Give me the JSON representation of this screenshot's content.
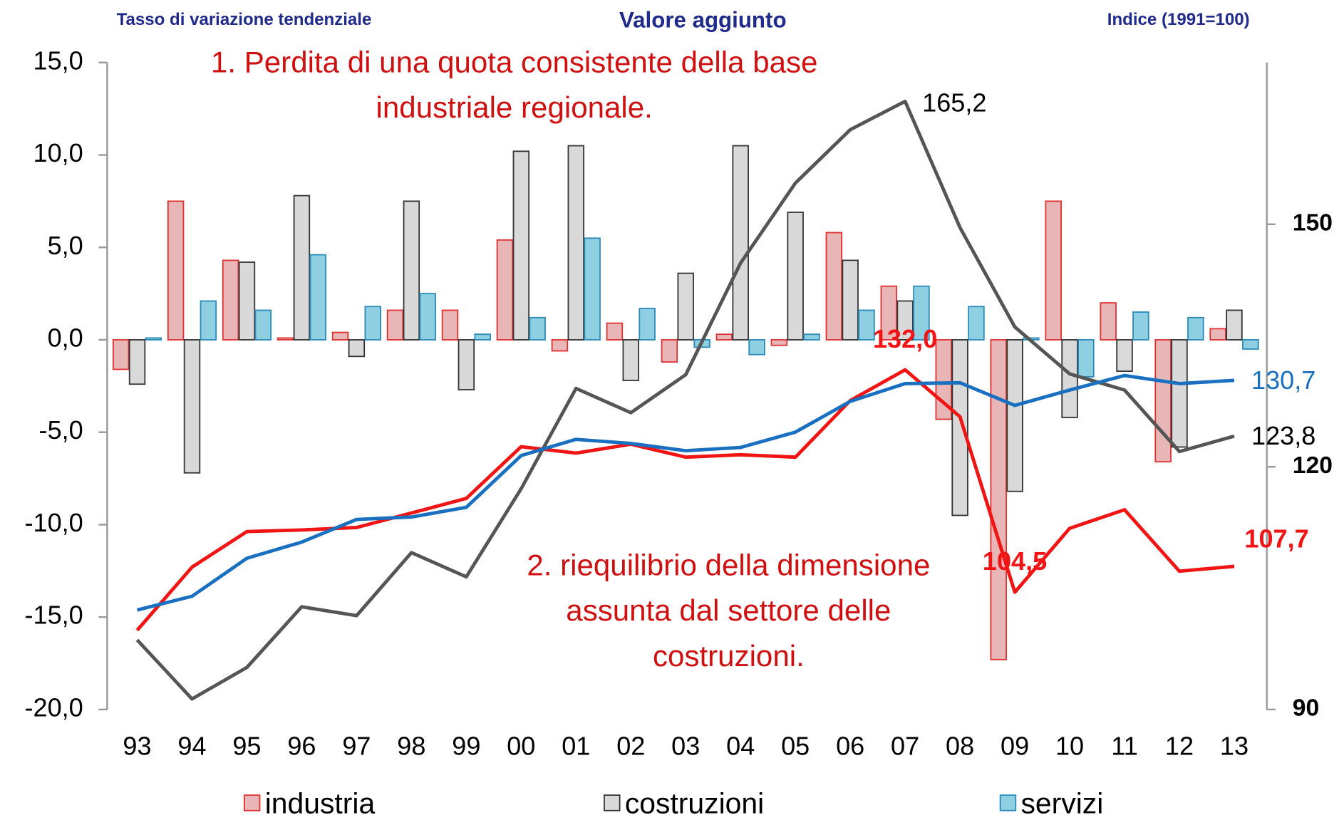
{
  "chart_data": {
    "type": "bar",
    "title": "Valore aggiunto",
    "y_axis_label": "Tasso di variazione tendenziale",
    "y2_axis_label": "Indice (1991=100)",
    "annotations": [
      {
        "lines": [
          "1. Perdita di una quota consistente della base",
          "industriale regionale."
        ]
      },
      {
        "lines": [
          "2. riequilibrio della dimensione",
          "assunta dal settore delle",
          "costruzioni."
        ]
      }
    ],
    "categories": [
      "93",
      "94",
      "95",
      "96",
      "97",
      "98",
      "99",
      "00",
      "01",
      "02",
      "03",
      "04",
      "05",
      "06",
      "07",
      "08",
      "09",
      "10",
      "11",
      "12",
      "13"
    ],
    "series": [
      {
        "name": "industria",
        "color": "#e8b6b6",
        "stroke": "#e03030",
        "values": [
          -1.6,
          7.5,
          4.3,
          0.1,
          0.4,
          1.6,
          1.6,
          5.4,
          -0.6,
          0.9,
          -1.2,
          0.3,
          -0.3,
          5.8,
          2.9,
          -4.3,
          -17.3,
          7.5,
          2.0,
          -6.6,
          0.6
        ]
      },
      {
        "name": "costruzioni",
        "color": "#d9d9d9",
        "stroke": "#333333",
        "values": [
          -2.4,
          -7.2,
          4.2,
          7.8,
          -0.9,
          7.5,
          -2.7,
          10.2,
          10.5,
          -2.2,
          3.6,
          10.5,
          6.9,
          4.3,
          2.1,
          -9.5,
          -8.2,
          -4.2,
          -1.7,
          -5.8,
          1.6
        ]
      },
      {
        "name": "servizi",
        "color": "#8fcfe2",
        "stroke": "#2a8ab8",
        "values": [
          0.1,
          2.1,
          1.6,
          4.6,
          1.8,
          2.5,
          0.3,
          1.2,
          5.5,
          1.7,
          -0.4,
          -0.8,
          0.3,
          1.6,
          2.9,
          1.8,
          0.1,
          -2.0,
          1.5,
          1.2,
          -0.5
        ]
      }
    ],
    "line_series": [
      {
        "color": "#555555",
        "axis": "y2",
        "values": [
          98.6,
          91.3,
          95.2,
          102.7,
          101.6,
          109.4,
          106.4,
          117.3,
          129.7,
          126.7,
          131.4,
          145.2,
          155.1,
          161.7,
          165.2,
          149.6,
          137.3,
          131.5,
          129.5,
          121.9,
          123.8
        ],
        "value_labels": [
          null,
          null,
          null,
          null,
          null,
          null,
          null,
          null,
          null,
          null,
          null,
          null,
          null,
          null,
          "165,2",
          null,
          null,
          null,
          null,
          null,
          "123,8"
        ]
      },
      {
        "color": "#f01414",
        "axis": "y2",
        "values": [
          99.8,
          107.6,
          112.0,
          112.2,
          112.5,
          114.3,
          116.1,
          122.5,
          121.7,
          122.8,
          121.2,
          121.5,
          121.2,
          128.2,
          132.0,
          126.2,
          104.5,
          112.4,
          114.7,
          107.1,
          107.7
        ],
        "value_labels": [
          null,
          null,
          null,
          null,
          null,
          null,
          null,
          null,
          null,
          null,
          null,
          null,
          null,
          null,
          "132,0",
          null,
          "104,5",
          null,
          null,
          null,
          "107,7"
        ]
      },
      {
        "color": "#1a70c0",
        "axis": "y2",
        "values": [
          102.3,
          104.0,
          108.7,
          110.7,
          113.5,
          113.8,
          115.0,
          121.4,
          123.4,
          122.9,
          122.0,
          122.4,
          124.3,
          128.1,
          130.3,
          130.4,
          127.6,
          129.5,
          131.3,
          130.3,
          130.7
        ],
        "value_labels": [
          null,
          null,
          null,
          null,
          null,
          null,
          null,
          null,
          null,
          null,
          null,
          null,
          null,
          null,
          null,
          null,
          null,
          null,
          null,
          null,
          "130,7"
        ]
      }
    ],
    "ylim": [
      -20,
      15
    ],
    "yticks": [
      {
        "value": -20,
        "label": "-20,0"
      },
      {
        "value": -15,
        "label": "-15,0"
      },
      {
        "value": -10,
        "label": "-10,0"
      },
      {
        "value": -5,
        "label": "-5,0"
      },
      {
        "value": 0,
        "label": "0,0"
      },
      {
        "value": 5,
        "label": "5,0"
      },
      {
        "value": 10,
        "label": "10,0"
      },
      {
        "value": 15,
        "label": "15,0"
      }
    ],
    "y2lim": [
      90,
      170
    ],
    "y2ticks": [
      90,
      120,
      150
    ],
    "grid": false,
    "legend": "bottom"
  }
}
